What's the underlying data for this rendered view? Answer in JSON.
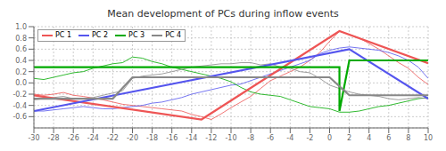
{
  "chart_data": {
    "type": "line",
    "title": "Mean development of PCs during inflow events",
    "xlim": [
      -30,
      10
    ],
    "ylim": [
      -0.8,
      1.0
    ],
    "xticks": [
      -30,
      -28,
      -26,
      -24,
      -22,
      -20,
      -18,
      -16,
      -14,
      -12,
      -10,
      -8,
      -6,
      -4,
      -2,
      0,
      2,
      4,
      6,
      8,
      10
    ],
    "yticks": [
      -0.6,
      -0.4,
      -0.2,
      {
        "value": 0,
        "label": "0.0"
      },
      0.2,
      0.4,
      0.6,
      0.8,
      {
        "value": 1,
        "label": "1.0"
      }
    ],
    "grid": true,
    "legend": "upper left",
    "series": [
      {
        "name": "PC 1",
        "color": "#EE5555",
        "x": [
          -30,
          -29,
          -28,
          -27,
          -26,
          -25,
          -24,
          -23,
          -22,
          -21,
          -20,
          -19,
          -18,
          -17,
          -16,
          -15,
          -14,
          -13,
          -12,
          -11,
          -10,
          -9,
          -8,
          -7,
          -6,
          -5,
          -4,
          -3,
          -2,
          -1,
          0,
          1,
          2,
          3,
          4,
          5,
          6,
          7,
          8,
          9,
          10
        ],
        "values": [
          -0.2,
          -0.22,
          -0.2,
          -0.17,
          -0.22,
          -0.24,
          -0.27,
          -0.3,
          -0.34,
          -0.38,
          -0.4,
          -0.42,
          -0.44,
          -0.46,
          -0.48,
          -0.5,
          -0.56,
          -0.6,
          -0.65,
          -0.55,
          -0.44,
          -0.34,
          -0.24,
          -0.1,
          0.04,
          0.12,
          0.2,
          0.28,
          0.4,
          0.54,
          0.74,
          0.92,
          0.86,
          0.8,
          0.7,
          0.6,
          0.48,
          0.36,
          0.26,
          0.1,
          -0.03
        ]
      },
      {
        "name": "PC 2",
        "color": "#5555EE",
        "x": [
          -30,
          -29,
          -28,
          -27,
          -26,
          -25,
          -24,
          -23,
          -22,
          -21,
          -20,
          -19,
          -18,
          -17,
          -16,
          -15,
          -14,
          -13,
          -12,
          -11,
          -10,
          -9,
          -8,
          -7,
          -6,
          -5,
          -4,
          -3,
          -2,
          -1,
          0,
          1,
          2,
          3,
          4,
          5,
          6,
          7,
          8,
          9,
          10
        ],
        "values": [
          -0.5,
          -0.5,
          -0.48,
          -0.46,
          -0.44,
          -0.42,
          -0.44,
          -0.46,
          -0.46,
          -0.44,
          -0.42,
          -0.4,
          -0.36,
          -0.34,
          -0.3,
          -0.26,
          -0.2,
          -0.16,
          -0.12,
          -0.08,
          -0.04,
          -0.02,
          0.04,
          0.1,
          0.16,
          0.22,
          0.28,
          0.34,
          0.4,
          0.52,
          0.58,
          0.62,
          0.64,
          0.62,
          0.6,
          0.58,
          0.54,
          0.48,
          0.4,
          0.28,
          0.08
        ]
      },
      {
        "name": "PC 3",
        "color": "#00AA00",
        "x": [
          -30,
          -29,
          -28,
          -27,
          -26,
          -25,
          -24,
          -23,
          -22,
          -21,
          -20,
          -19,
          -18,
          -17,
          -16,
          -15,
          -14,
          -13,
          -12,
          -11,
          -10,
          -9,
          -8,
          -7,
          -6,
          -5,
          -4,
          -3,
          -2,
          -1,
          0,
          1,
          2,
          3,
          4,
          5,
          6,
          7,
          8,
          9,
          10
        ],
        "values": [
          0.08,
          0.06,
          0.1,
          0.14,
          0.18,
          0.2,
          0.26,
          0.3,
          0.34,
          0.36,
          0.46,
          0.44,
          0.38,
          0.34,
          0.28,
          0.24,
          0.2,
          0.16,
          0.12,
          0.08,
          0.02,
          -0.08,
          -0.16,
          -0.2,
          -0.22,
          -0.24,
          -0.3,
          -0.36,
          -0.42,
          -0.44,
          -0.46,
          -0.52,
          -0.52,
          -0.5,
          -0.46,
          -0.42,
          -0.4,
          -0.36,
          -0.32,
          -0.28,
          -0.26
        ]
      },
      {
        "name": "PC 4",
        "color": "#888888",
        "x": [
          -30,
          -29,
          -28,
          -27,
          -26,
          -25,
          -24,
          -23,
          -22,
          -21,
          -20,
          -19,
          -18,
          -17,
          -16,
          -15,
          -14,
          -13,
          -12,
          -11,
          -10,
          -9,
          -8,
          -7,
          -6,
          -5,
          -4,
          -3,
          -2,
          -1,
          0,
          1,
          2,
          3,
          4,
          5,
          6,
          7,
          8,
          9,
          10
        ],
        "values": [
          -0.3,
          -0.28,
          -0.26,
          -0.24,
          -0.28,
          -0.28,
          -0.26,
          -0.22,
          -0.18,
          -0.14,
          0.08,
          0.12,
          0.14,
          0.16,
          0.2,
          0.24,
          0.28,
          0.3,
          0.32,
          0.34,
          0.34,
          0.36,
          0.36,
          0.32,
          0.34,
          0.28,
          0.26,
          0.2,
          0.18,
          0.08,
          -0.04,
          -0.1,
          -0.16,
          -0.2,
          -0.22,
          -0.24,
          -0.28,
          -0.3,
          -0.28,
          -0.26,
          -0.28
        ]
      },
      {
        "color": "#EE5555",
        "x": [
          -30,
          -13,
          1,
          10
        ],
        "values": [
          -0.22,
          -0.65,
          0.92,
          0.35
        ]
      },
      {
        "color": "#5555EE",
        "x": [
          -30,
          2,
          10
        ],
        "values": [
          -0.5,
          0.6,
          -0.28
        ]
      },
      {
        "color": "#00AA00",
        "x": [
          -30,
          -1,
          1,
          1,
          2,
          10
        ],
        "values": [
          0.28,
          0.28,
          0.28,
          -0.5,
          0.4,
          0.4
        ]
      },
      {
        "color": "#888888",
        "x": [
          -30,
          -22,
          -20,
          0,
          2,
          10
        ],
        "values": [
          -0.28,
          -0.28,
          0.1,
          0.1,
          -0.22,
          -0.22
        ]
      }
    ]
  }
}
